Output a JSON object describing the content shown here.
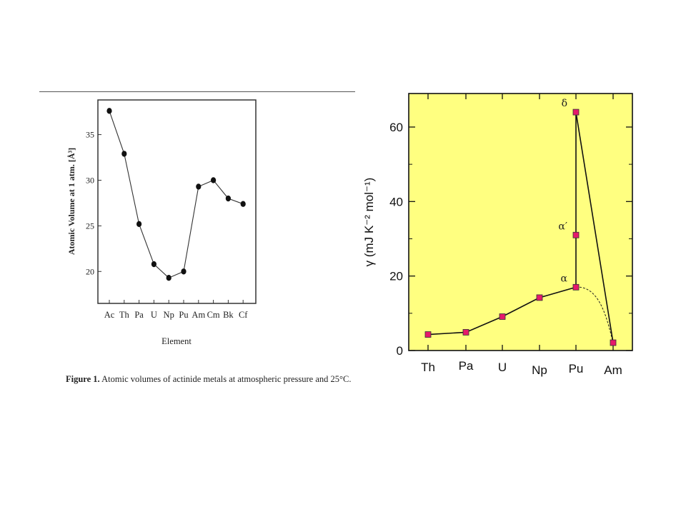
{
  "caption": {
    "label": "Figure 1.",
    "text": " Atomic volumes of actinide metals at atmospheric pressure and 25°C."
  },
  "chart_data": [
    {
      "type": "line",
      "title": "",
      "xlabel": "Element",
      "ylabel": "Atomic Volume at 1 atm. [Å³]",
      "categories": [
        "Ac",
        "Th",
        "Pa",
        "U",
        "Np",
        "Pu",
        "Am",
        "Cm",
        "Bk",
        "Cf"
      ],
      "values": [
        37.6,
        32.9,
        25.2,
        20.8,
        19.3,
        20.0,
        29.3,
        30.0,
        28.0,
        27.4
      ],
      "yticks": [
        20,
        25,
        30,
        35
      ],
      "ylim": [
        16.5,
        38.8
      ],
      "marker": "filled-circle",
      "color": "#111111"
    },
    {
      "type": "line",
      "title": "",
      "xlabel": "",
      "ylabel": "γ (mJ K⁻² mol⁻¹)",
      "categories": [
        "Th",
        "Pa",
        "U",
        "Np",
        "Pu",
        "Am"
      ],
      "yticks": [
        0,
        20,
        40,
        60
      ],
      "ylim": [
        0,
        69
      ],
      "background": "#ffff80",
      "marker_color": "#e6196b",
      "series": [
        {
          "points": [
            {
              "x": "Th",
              "y": 4.3
            },
            {
              "x": "Pa",
              "y": 4.9
            },
            {
              "x": "U",
              "y": 9.1
            },
            {
              "x": "Np",
              "y": 14.2
            },
            {
              "x": "Pu",
              "y": 17.0
            },
            {
              "x": "Pu",
              "y": 31.0
            },
            {
              "x": "Pu",
              "y": 64.0
            },
            {
              "x": "Am",
              "y": 2.1
            }
          ],
          "style": "solid"
        },
        {
          "points": [
            {
              "x": "Th",
              "y": 4.3
            },
            {
              "x": "Pa",
              "y": 4.9
            },
            {
              "x": "U",
              "y": 9.1
            },
            {
              "x": "Np",
              "y": 14.2
            },
            {
              "x": "Pu",
              "y": 17.0
            },
            {
              "x": "Am",
              "y": 2.1
            }
          ],
          "style": "dashed"
        }
      ],
      "annotations": [
        {
          "text": "δ",
          "x": "Pu",
          "y": 64.0
        },
        {
          "text": "α′",
          "x": "Pu",
          "y": 31.0
        },
        {
          "text": "α",
          "x": "Pu",
          "y": 17.0
        }
      ]
    }
  ]
}
